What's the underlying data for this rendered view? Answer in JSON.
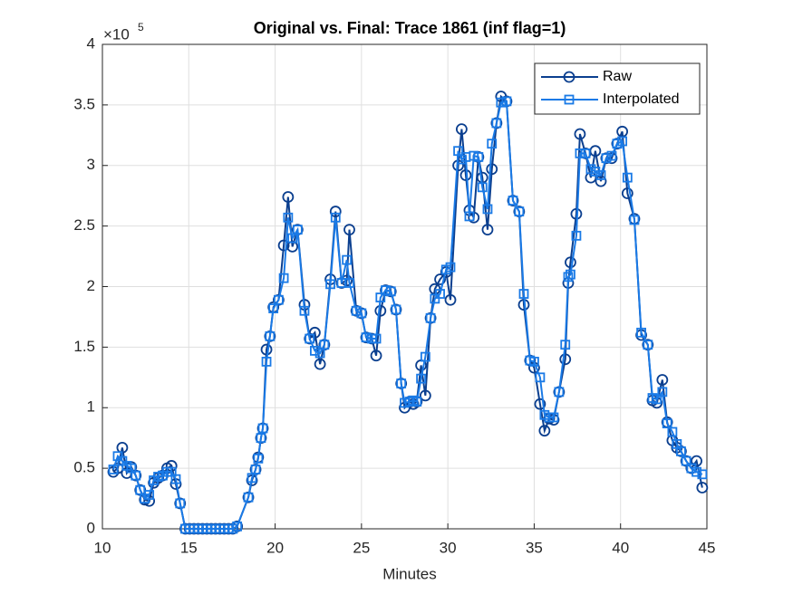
{
  "chart_data": {
    "type": "line",
    "title": "Original vs. Final: Trace 1861 (inf flag=1)",
    "x_label": "Minutes",
    "y_multiplier": "×10",
    "y_multiplier_exponent": "5",
    "x": [
      10.63,
      10.89,
      11.15,
      11.41,
      11.67,
      11.93,
      12.19,
      12.45,
      12.71,
      12.97,
      13.23,
      13.49,
      13.75,
      14.0,
      14.25,
      14.5,
      14.8,
      15.05,
      15.3,
      15.55,
      15.8,
      16.05,
      16.3,
      16.55,
      16.8,
      17.05,
      17.3,
      17.55,
      17.8,
      18.45,
      18.66,
      18.87,
      19.02,
      19.18,
      19.29,
      19.5,
      19.7,
      19.9,
      20.2,
      20.5,
      20.75,
      21.0,
      21.3,
      21.7,
      22.0,
      22.3,
      22.6,
      22.85,
      23.2,
      23.5,
      23.85,
      24.15,
      24.3,
      24.7,
      25.0,
      25.27,
      25.6,
      25.85,
      26.1,
      26.4,
      26.7,
      27.0,
      27.3,
      27.5,
      27.8,
      28.0,
      28.2,
      28.45,
      28.7,
      29.0,
      29.25,
      29.55,
      29.9,
      30.15,
      30.6,
      30.8,
      31.04,
      31.25,
      31.5,
      31.77,
      32.0,
      32.3,
      32.55,
      32.82,
      33.08,
      33.4,
      33.77,
      34.13,
      34.4,
      34.76,
      35.0,
      35.34,
      35.6,
      35.87,
      36.13,
      36.44,
      36.8,
      36.97,
      37.1,
      37.44,
      37.65,
      37.97,
      38.28,
      38.54,
      38.86,
      39.17,
      39.49,
      39.8,
      40.1,
      40.4,
      40.8,
      41.2,
      41.58,
      41.85,
      42.1,
      42.42,
      42.7,
      43.0,
      43.26,
      43.5,
      43.8,
      44.1,
      44.4,
      44.73
    ],
    "series": [
      {
        "name": "Raw",
        "color": "#0b3f8f",
        "marker": "circle",
        "values": [
          0.47,
          0.5,
          0.67,
          0.46,
          0.51,
          0.44,
          0.32,
          0.24,
          0.23,
          0.38,
          0.42,
          0.44,
          0.5,
          0.52,
          0.37,
          0.21,
          0,
          0,
          0,
          0,
          0,
          0,
          0,
          0,
          0,
          0,
          0,
          0,
          0.02,
          0.26,
          0.4,
          0.49,
          0.59,
          0.75,
          0.83,
          1.48,
          1.59,
          1.83,
          1.89,
          2.34,
          2.74,
          2.33,
          2.47,
          1.85,
          1.57,
          1.62,
          1.36,
          1.52,
          2.06,
          2.62,
          2.03,
          2.05,
          2.47,
          1.8,
          1.78,
          1.58,
          1.57,
          1.43,
          1.8,
          1.97,
          1.96,
          1.81,
          1.2,
          1.0,
          1.05,
          1.03,
          1.05,
          1.35,
          1.1,
          1.74,
          1.98,
          2.06,
          2.12,
          1.89,
          3.0,
          3.3,
          2.92,
          2.63,
          2.57,
          3.07,
          2.9,
          2.47,
          2.97,
          3.35,
          3.57,
          3.53,
          2.71,
          2.62,
          1.85,
          1.39,
          1.33,
          1.03,
          0.81,
          0.91,
          0.9,
          1.13,
          1.4,
          2.03,
          2.2,
          2.6,
          3.26,
          3.1,
          2.9,
          3.12,
          2.87,
          3.06,
          3.06,
          3.18,
          3.28,
          2.77,
          2.56,
          1.6,
          1.52,
          1.06,
          1.04,
          1.23,
          0.88,
          0.73,
          0.67,
          0.64,
          0.56,
          0.5,
          0.56,
          0.34
        ]
      },
      {
        "name": "Interpolated",
        "color": "#1a7ae6",
        "marker": "square",
        "values": [
          0.49,
          0.6,
          0.56,
          0.52,
          0.5,
          0.44,
          0.32,
          0.25,
          0.28,
          0.4,
          0.43,
          0.44,
          0.47,
          0.47,
          0.41,
          0.21,
          0,
          0,
          0,
          0,
          0,
          0,
          0,
          0,
          0,
          0,
          0,
          0,
          0.02,
          0.26,
          0.42,
          0.49,
          0.58,
          0.75,
          0.83,
          1.38,
          1.59,
          1.82,
          1.89,
          2.07,
          2.57,
          2.4,
          2.47,
          1.8,
          1.57,
          1.47,
          1.45,
          1.52,
          2.02,
          2.57,
          2.03,
          2.22,
          2.03,
          1.8,
          1.78,
          1.58,
          1.57,
          1.57,
          1.91,
          1.97,
          1.96,
          1.81,
          1.2,
          1.04,
          1.05,
          1.06,
          1.05,
          1.24,
          1.42,
          1.74,
          1.9,
          1.94,
          2.14,
          2.16,
          3.12,
          3.05,
          3.07,
          2.58,
          3.08,
          3.07,
          2.82,
          2.64,
          3.18,
          3.35,
          3.52,
          3.53,
          2.71,
          2.62,
          1.94,
          1.39,
          1.38,
          1.25,
          0.94,
          0.92,
          0.92,
          1.13,
          1.52,
          2.08,
          2.1,
          2.42,
          3.1,
          3.1,
          2.97,
          2.95,
          2.92,
          3.06,
          3.08,
          3.18,
          3.2,
          2.9,
          2.55,
          1.62,
          1.52,
          1.08,
          1.07,
          1.13,
          0.87,
          0.8,
          0.7,
          0.64,
          0.56,
          0.5,
          0.47,
          0.45
        ]
      }
    ],
    "xlim": [
      10,
      45
    ],
    "xticks": [
      10,
      15,
      20,
      25,
      30,
      35,
      40,
      45
    ],
    "ylim": [
      0,
      4
    ],
    "yticks": [
      0,
      0.5,
      1,
      1.5,
      2,
      2.5,
      3,
      3.5,
      4
    ],
    "grid": true,
    "legend": "northeast"
  }
}
